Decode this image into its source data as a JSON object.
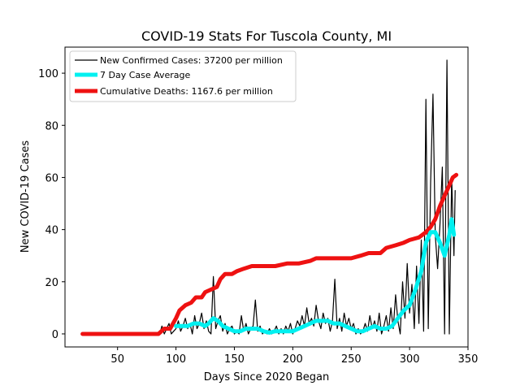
{
  "chart_data": {
    "type": "line",
    "title": "COVID-19 Stats For Tuscola County, MI",
    "xlabel": "Days Since 2020 Began",
    "ylabel": "New COVID-19 Cases",
    "xlim": [
      5,
      350
    ],
    "ylim": [
      -5,
      110
    ],
    "xticks": [
      50,
      100,
      150,
      200,
      250,
      300,
      350
    ],
    "yticks": [
      0,
      20,
      40,
      60,
      80,
      100
    ],
    "grid": false,
    "legend_position": "top-left",
    "series": [
      {
        "name": "New Confirmed Cases: 37200 per million",
        "color": "#000000",
        "style": "thin-line",
        "points": [
          [
            20,
            0
          ],
          [
            80,
            0
          ],
          [
            86,
            0
          ],
          [
            88,
            3
          ],
          [
            90,
            0
          ],
          [
            92,
            2
          ],
          [
            94,
            4
          ],
          [
            96,
            0
          ],
          [
            98,
            1
          ],
          [
            100,
            2
          ],
          [
            102,
            5
          ],
          [
            104,
            1
          ],
          [
            106,
            3
          ],
          [
            108,
            6
          ],
          [
            110,
            2
          ],
          [
            112,
            4
          ],
          [
            114,
            0
          ],
          [
            116,
            7
          ],
          [
            118,
            2
          ],
          [
            120,
            4
          ],
          [
            122,
            8
          ],
          [
            124,
            2
          ],
          [
            126,
            5
          ],
          [
            128,
            1
          ],
          [
            130,
            0
          ],
          [
            132,
            22
          ],
          [
            134,
            2
          ],
          [
            136,
            5
          ],
          [
            138,
            7
          ],
          [
            140,
            1
          ],
          [
            142,
            4
          ],
          [
            144,
            0
          ],
          [
            146,
            2
          ],
          [
            148,
            3
          ],
          [
            150,
            0
          ],
          [
            152,
            1
          ],
          [
            154,
            0
          ],
          [
            156,
            7
          ],
          [
            158,
            1
          ],
          [
            160,
            4
          ],
          [
            162,
            0
          ],
          [
            164,
            2
          ],
          [
            166,
            3
          ],
          [
            168,
            13
          ],
          [
            170,
            1
          ],
          [
            172,
            3
          ],
          [
            174,
            0
          ],
          [
            176,
            1
          ],
          [
            178,
            0
          ],
          [
            180,
            2
          ],
          [
            182,
            0
          ],
          [
            184,
            1
          ],
          [
            186,
            3
          ],
          [
            188,
            0
          ],
          [
            190,
            2
          ],
          [
            192,
            0
          ],
          [
            194,
            3
          ],
          [
            196,
            1
          ],
          [
            198,
            4
          ],
          [
            200,
            0
          ],
          [
            202,
            2
          ],
          [
            204,
            5
          ],
          [
            206,
            3
          ],
          [
            208,
            7
          ],
          [
            210,
            3
          ],
          [
            212,
            10
          ],
          [
            214,
            4
          ],
          [
            216,
            6
          ],
          [
            218,
            3
          ],
          [
            220,
            11
          ],
          [
            222,
            5
          ],
          [
            224,
            2
          ],
          [
            226,
            8
          ],
          [
            228,
            4
          ],
          [
            230,
            6
          ],
          [
            232,
            1
          ],
          [
            234,
            5
          ],
          [
            236,
            21
          ],
          [
            238,
            2
          ],
          [
            240,
            6
          ],
          [
            242,
            1
          ],
          [
            244,
            8
          ],
          [
            246,
            3
          ],
          [
            248,
            6
          ],
          [
            250,
            2
          ],
          [
            252,
            4
          ],
          [
            254,
            0
          ],
          [
            256,
            2
          ],
          [
            258,
            0
          ],
          [
            260,
            1
          ],
          [
            262,
            4
          ],
          [
            264,
            1
          ],
          [
            266,
            7
          ],
          [
            268,
            2
          ],
          [
            270,
            5
          ],
          [
            272,
            1
          ],
          [
            274,
            8
          ],
          [
            276,
            0
          ],
          [
            278,
            3
          ],
          [
            280,
            7
          ],
          [
            282,
            1
          ],
          [
            284,
            10
          ],
          [
            286,
            2
          ],
          [
            288,
            15
          ],
          [
            290,
            5
          ],
          [
            292,
            0
          ],
          [
            294,
            20
          ],
          [
            296,
            6
          ],
          [
            298,
            27
          ],
          [
            300,
            8
          ],
          [
            302,
            19
          ],
          [
            304,
            2
          ],
          [
            306,
            26
          ],
          [
            308,
            4
          ],
          [
            310,
            36
          ],
          [
            312,
            1
          ],
          [
            314,
            90
          ],
          [
            316,
            2
          ],
          [
            318,
            58
          ],
          [
            320,
            92
          ],
          [
            322,
            38
          ],
          [
            324,
            25
          ],
          [
            326,
            42
          ],
          [
            328,
            64
          ],
          [
            330,
            0
          ],
          [
            332,
            105
          ],
          [
            334,
            0
          ],
          [
            336,
            60
          ],
          [
            338,
            30
          ],
          [
            339,
            55
          ]
        ]
      },
      {
        "name": "7 Day Case Average",
        "color": "#00f0f0",
        "style": "thick-line",
        "points": [
          [
            100,
            3
          ],
          [
            105,
            3
          ],
          [
            110,
            3
          ],
          [
            115,
            4
          ],
          [
            120,
            4
          ],
          [
            125,
            3
          ],
          [
            128,
            4
          ],
          [
            132,
            6
          ],
          [
            136,
            5
          ],
          [
            140,
            3
          ],
          [
            145,
            2
          ],
          [
            150,
            1
          ],
          [
            155,
            1
          ],
          [
            160,
            2
          ],
          [
            165,
            2
          ],
          [
            170,
            2
          ],
          [
            175,
            1
          ],
          [
            180,
            0.5
          ],
          [
            185,
            1
          ],
          [
            190,
            1
          ],
          [
            195,
            1
          ],
          [
            200,
            1
          ],
          [
            205,
            2
          ],
          [
            210,
            3
          ],
          [
            215,
            4
          ],
          [
            220,
            5
          ],
          [
            225,
            5
          ],
          [
            230,
            5
          ],
          [
            235,
            4
          ],
          [
            240,
            4
          ],
          [
            245,
            3
          ],
          [
            250,
            2
          ],
          [
            255,
            1
          ],
          [
            260,
            1
          ],
          [
            265,
            2
          ],
          [
            270,
            3
          ],
          [
            275,
            2
          ],
          [
            280,
            2
          ],
          [
            285,
            3
          ],
          [
            290,
            6
          ],
          [
            295,
            9
          ],
          [
            300,
            11
          ],
          [
            305,
            17
          ],
          [
            310,
            24
          ],
          [
            314,
            35
          ],
          [
            318,
            39
          ],
          [
            322,
            39
          ],
          [
            326,
            35
          ],
          [
            330,
            30
          ],
          [
            334,
            38
          ],
          [
            336,
            44
          ],
          [
            338,
            38
          ]
        ]
      },
      {
        "name": "Cumulative Deaths: 1167.6 per million",
        "color": "#ee1111",
        "style": "thick-line",
        "points": [
          [
            20,
            0
          ],
          [
            85,
            0
          ],
          [
            90,
            2
          ],
          [
            95,
            2
          ],
          [
            100,
            6
          ],
          [
            103,
            9
          ],
          [
            108,
            11
          ],
          [
            113,
            12
          ],
          [
            117,
            14
          ],
          [
            122,
            14
          ],
          [
            125,
            16
          ],
          [
            130,
            17
          ],
          [
            135,
            18
          ],
          [
            138,
            21
          ],
          [
            142,
            23
          ],
          [
            148,
            23
          ],
          [
            152,
            24
          ],
          [
            158,
            25
          ],
          [
            165,
            26
          ],
          [
            175,
            26
          ],
          [
            185,
            26
          ],
          [
            195,
            27
          ],
          [
            205,
            27
          ],
          [
            215,
            28
          ],
          [
            220,
            29
          ],
          [
            235,
            29
          ],
          [
            250,
            29
          ],
          [
            258,
            30
          ],
          [
            265,
            31
          ],
          [
            275,
            31
          ],
          [
            280,
            33
          ],
          [
            288,
            34
          ],
          [
            295,
            35
          ],
          [
            300,
            36
          ],
          [
            308,
            37
          ],
          [
            314,
            39
          ],
          [
            318,
            41
          ],
          [
            322,
            44
          ],
          [
            326,
            49
          ],
          [
            330,
            53
          ],
          [
            334,
            57
          ],
          [
            337,
            60
          ],
          [
            340,
            61
          ]
        ]
      }
    ]
  }
}
